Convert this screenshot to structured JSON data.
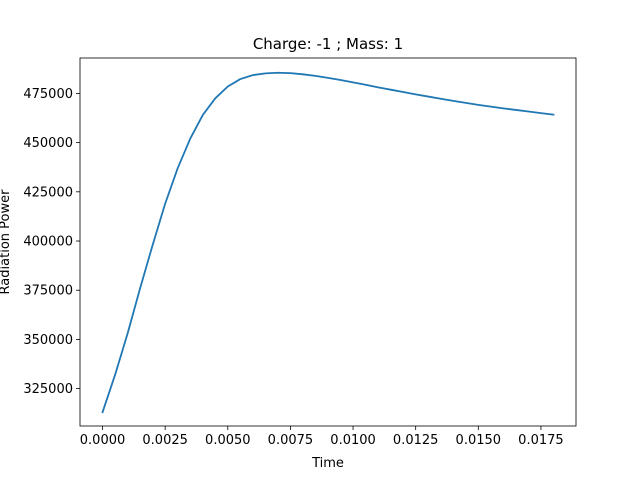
{
  "chart_data": {
    "type": "line",
    "title": "Charge: -1 ; Mass: 1",
    "xlabel": "Time",
    "ylabel": "Radiation Power",
    "xlim": [
      -0.0009,
      0.0189
    ],
    "ylim": [
      306000,
      493000
    ],
    "xticks": [
      0.0,
      0.0025,
      0.005,
      0.0075,
      0.01,
      0.0125,
      0.015,
      0.0175
    ],
    "xtick_labels": [
      "0.0000",
      "0.0025",
      "0.0050",
      "0.0075",
      "0.0100",
      "0.0125",
      "0.0150",
      "0.0175"
    ],
    "yticks": [
      325000,
      350000,
      375000,
      400000,
      425000,
      450000,
      475000
    ],
    "ytick_labels": [
      "325000",
      "350000",
      "375000",
      "400000",
      "425000",
      "450000",
      "475000"
    ],
    "grid": false,
    "color": "#1f77b4",
    "series": [
      {
        "x": [
          0.0,
          0.0005,
          0.001,
          0.0015,
          0.002,
          0.0025,
          0.003,
          0.0035,
          0.004,
          0.0045,
          0.005,
          0.0055,
          0.006,
          0.0065,
          0.007,
          0.0075,
          0.008,
          0.0085,
          0.009,
          0.0095,
          0.01,
          0.0105,
          0.011,
          0.0115,
          0.012,
          0.0125,
          0.013,
          0.0135,
          0.014,
          0.0145,
          0.015,
          0.0155,
          0.016,
          0.0165,
          0.017,
          0.0175,
          0.018
        ],
        "y": [
          313000,
          332000,
          353000,
          376000,
          398000,
          419000,
          437000,
          452000,
          464000,
          472500,
          478500,
          482300,
          484300,
          485200,
          485500,
          485300,
          484700,
          483900,
          482900,
          481800,
          480600,
          479400,
          478100,
          476900,
          475700,
          474500,
          473400,
          472300,
          471200,
          470200,
          469200,
          468300,
          467400,
          466600,
          465800,
          465000,
          464200
        ]
      }
    ]
  }
}
